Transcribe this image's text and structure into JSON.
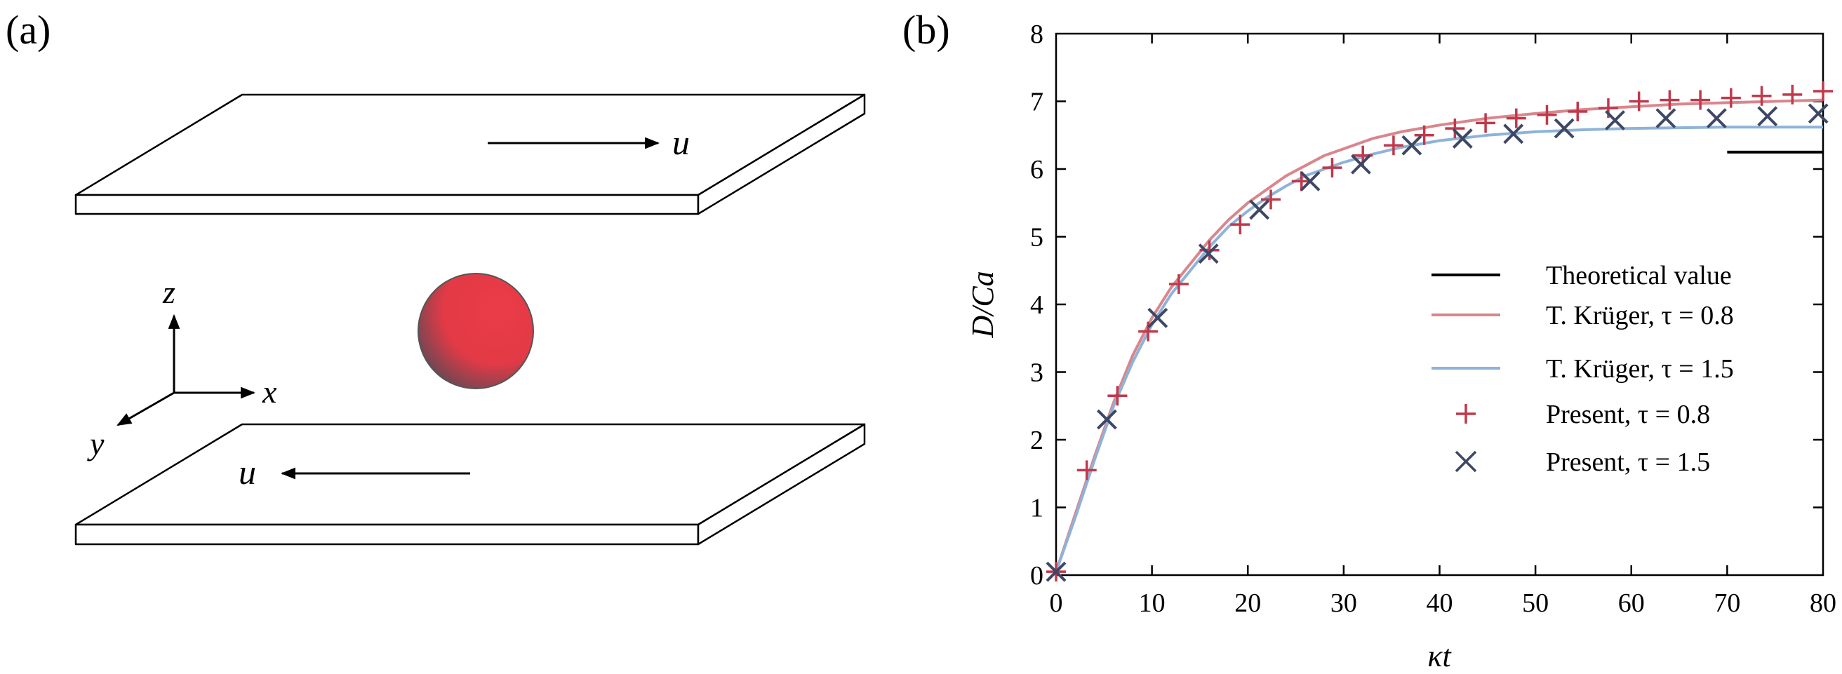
{
  "panel_a": {
    "label": "(a)",
    "top_plate_velocity": "u",
    "bottom_plate_velocity": "u",
    "axis_z": "z",
    "axis_x": "x",
    "axis_y": "y",
    "sphere_color": "#e63946",
    "sphere_shadow_color": "#4a4a55"
  },
  "panel_b": {
    "label": "(b)"
  },
  "chart_data": {
    "type": "line",
    "xlabel": "κt",
    "ylabel": "D/Ca",
    "xlim": [
      0,
      80
    ],
    "ylim": [
      0,
      8
    ],
    "x_ticks": [
      0,
      10,
      20,
      30,
      40,
      50,
      60,
      70,
      80
    ],
    "y_ticks": [
      0,
      1,
      2,
      3,
      4,
      5,
      6,
      7,
      8
    ],
    "grid": false,
    "legend_position": "bottom-right",
    "theory": {
      "name": "Theoretical value",
      "color": "#000000",
      "x": [
        70,
        80
      ],
      "y": [
        6.25,
        6.25
      ]
    },
    "curves": [
      {
        "name": "T. Krüger, τ = 0.8",
        "color": "#d9868d",
        "x": [
          0,
          2,
          4,
          6,
          8,
          10,
          12,
          14,
          16,
          18,
          20,
          22,
          24,
          26,
          28,
          30,
          33,
          36,
          40,
          45,
          50,
          55,
          60,
          65,
          70,
          75,
          80
        ],
        "y": [
          0.05,
          0.9,
          1.75,
          2.55,
          3.25,
          3.8,
          4.25,
          4.6,
          4.95,
          5.25,
          5.5,
          5.7,
          5.9,
          6.05,
          6.2,
          6.3,
          6.45,
          6.55,
          6.65,
          6.75,
          6.82,
          6.88,
          6.92,
          6.96,
          6.98,
          7.0,
          7.02
        ]
      },
      {
        "name": "T. Krüger, τ = 1.5",
        "color": "#8fb3d8",
        "x": [
          0,
          2,
          4,
          6,
          8,
          10,
          12,
          14,
          16,
          18,
          20,
          22,
          24,
          26,
          28,
          30,
          33,
          36,
          40,
          45,
          50,
          55,
          60,
          65,
          70,
          75,
          80
        ],
        "y": [
          0.05,
          0.85,
          1.7,
          2.5,
          3.15,
          3.7,
          4.15,
          4.5,
          4.85,
          5.15,
          5.38,
          5.58,
          5.75,
          5.9,
          6.0,
          6.1,
          6.22,
          6.32,
          6.42,
          6.5,
          6.55,
          6.58,
          6.6,
          6.61,
          6.62,
          6.62,
          6.62
        ]
      }
    ],
    "markers": [
      {
        "name": "Present, τ = 0.8",
        "marker": "plus",
        "color": "#c0394b",
        "x": [
          0,
          3.2,
          6.4,
          9.6,
          12.8,
          16,
          19.2,
          22.4,
          25.6,
          28.8,
          32,
          35.2,
          38.4,
          41.6,
          44.8,
          48,
          51.2,
          54.4,
          57.6,
          60.8,
          64,
          67.2,
          70.4,
          73.6,
          76.8,
          80
        ],
        "y": [
          0.05,
          1.55,
          2.65,
          3.6,
          4.3,
          4.8,
          5.18,
          5.55,
          5.82,
          6.02,
          6.2,
          6.35,
          6.5,
          6.6,
          6.68,
          6.75,
          6.8,
          6.85,
          6.9,
          7.0,
          7.02,
          7.02,
          7.05,
          7.08,
          7.1,
          7.15
        ]
      },
      {
        "name": "Present, τ = 1.5",
        "marker": "cross",
        "color": "#3d4766",
        "x": [
          0,
          5.3,
          10.6,
          15.9,
          21.2,
          26.5,
          31.8,
          37.1,
          42.4,
          47.7,
          53,
          58.3,
          63.6,
          68.9,
          74.2,
          79.5
        ],
        "y": [
          0.05,
          2.3,
          3.8,
          4.75,
          5.4,
          5.82,
          6.07,
          6.35,
          6.45,
          6.52,
          6.6,
          6.72,
          6.75,
          6.75,
          6.78,
          6.82
        ]
      }
    ]
  }
}
